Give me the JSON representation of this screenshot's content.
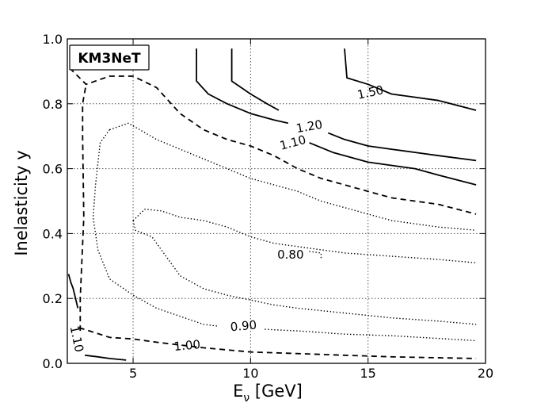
{
  "chart_data": {
    "type": "contour",
    "title": "",
    "annotation_box": "KM3NeT",
    "xlabel": "E_ν [GeV]",
    "xlabel_main": "E",
    "xlabel_sub": "ν",
    "xlabel_rest": " [GeV]",
    "ylabel": "Inelasticity y",
    "xlim": [
      2.2,
      20
    ],
    "ylim": [
      0.0,
      1.0
    ],
    "xticks": [
      5,
      10,
      15,
      20
    ],
    "xtick_labels": [
      "5",
      "10",
      "15",
      "20"
    ],
    "yticks": [
      0.0,
      0.2,
      0.4,
      0.6,
      0.8,
      1.0
    ],
    "ytick_labels": [
      "0.0",
      "0.2",
      "0.4",
      "0.6",
      "0.8",
      "1.0"
    ],
    "grid": true,
    "series": [
      {
        "name": "1.50",
        "style": "solid",
        "points": [
          [
            14.0,
            0.97
          ],
          [
            14.1,
            0.88
          ],
          [
            15.0,
            0.86
          ],
          [
            16.0,
            0.83
          ],
          [
            18.0,
            0.81
          ],
          [
            19.6,
            0.78
          ]
        ],
        "label": {
          "text": "1.50",
          "at": [
            15.1,
            0.835
          ],
          "angle": -12
        }
      },
      {
        "name": "1.20 (left)",
        "style": "solid",
        "points": [
          [
            7.7,
            0.97
          ],
          [
            7.7,
            0.87
          ],
          [
            8.2,
            0.83
          ],
          [
            9.0,
            0.8
          ],
          [
            10.0,
            0.77
          ],
          [
            11.0,
            0.75
          ],
          [
            11.6,
            0.74
          ]
        ]
      },
      {
        "name": "1.20 (right)",
        "style": "solid",
        "points": [
          [
            13.3,
            0.71
          ],
          [
            14.0,
            0.69
          ],
          [
            15.0,
            0.67
          ],
          [
            16.0,
            0.66
          ],
          [
            17.0,
            0.65
          ],
          [
            18.0,
            0.64
          ],
          [
            19.6,
            0.625
          ]
        ],
        "label": {
          "text": "1.20",
          "at": [
            12.5,
            0.73
          ],
          "angle": -10
        }
      },
      {
        "name": "1.10 (upper left)",
        "style": "solid",
        "points": [
          [
            9.2,
            0.97
          ],
          [
            9.2,
            0.87
          ],
          [
            10.0,
            0.83
          ],
          [
            10.7,
            0.8
          ],
          [
            11.2,
            0.78
          ]
        ]
      },
      {
        "name": "1.10 (upper right)",
        "style": "solid",
        "points": [
          [
            12.5,
            0.68
          ],
          [
            13.5,
            0.65
          ],
          [
            15.0,
            0.62
          ],
          [
            16.0,
            0.61
          ],
          [
            17.0,
            0.6
          ],
          [
            18.0,
            0.58
          ],
          [
            19.6,
            0.55
          ]
        ],
        "label": {
          "text": "1.10",
          "at": [
            11.8,
            0.68
          ],
          "angle": -15
        }
      },
      {
        "name": "1.10 (lower left)",
        "style": "solid",
        "points": [
          [
            2.25,
            0.275
          ],
          [
            2.35,
            0.25
          ],
          [
            2.45,
            0.23
          ],
          [
            2.55,
            0.2
          ],
          [
            2.65,
            0.17
          ]
        ]
      },
      {
        "name": "1.10 (lower right)",
        "style": "solid",
        "points": [
          [
            2.95,
            0.025
          ],
          [
            3.5,
            0.02
          ],
          [
            4.0,
            0.015
          ],
          [
            4.7,
            0.01
          ]
        ],
        "label": {
          "text": "1.10",
          "at": [
            2.6,
            0.075
          ],
          "angle": 78
        }
      },
      {
        "name": "1.00",
        "style": "dashed",
        "points": [
          [
            2.3,
            0.91
          ],
          [
            3.0,
            0.86
          ],
          [
            4.0,
            0.885
          ],
          [
            5.0,
            0.885
          ],
          [
            6.0,
            0.85
          ],
          [
            7.0,
            0.77
          ],
          [
            8.0,
            0.72
          ],
          [
            9.0,
            0.69
          ],
          [
            10.0,
            0.67
          ],
          [
            11.0,
            0.64
          ],
          [
            12.0,
            0.6
          ],
          [
            13.0,
            0.57
          ],
          [
            14.0,
            0.55
          ],
          [
            15.0,
            0.53
          ],
          [
            16.0,
            0.51
          ],
          [
            17.0,
            0.5
          ],
          [
            18.0,
            0.49
          ],
          [
            19.6,
            0.46
          ],
          null,
          [
            2.75,
            0.1
          ],
          [
            2.75,
            0.2
          ],
          [
            2.9,
            0.45
          ],
          [
            2.85,
            0.7
          ],
          [
            2.85,
            0.8
          ],
          [
            3.0,
            0.86
          ],
          null,
          [
            2.7,
            0.11
          ],
          [
            4.0,
            0.08
          ],
          [
            5.0,
            0.075
          ],
          [
            6.0,
            0.065
          ],
          [
            8.0,
            0.048
          ],
          [
            10.0,
            0.035
          ],
          [
            12.0,
            0.03
          ],
          [
            14.0,
            0.025
          ],
          [
            16.0,
            0.02
          ],
          [
            19.6,
            0.015
          ]
        ],
        "label": {
          "text": "1.00",
          "at": [
            7.3,
            0.055
          ],
          "angle": -5
        }
      },
      {
        "name": "0.90",
        "style": "dotted",
        "points": [
          [
            4.0,
            0.72
          ],
          [
            4.8,
            0.74
          ],
          [
            6.0,
            0.69
          ],
          [
            7.0,
            0.66
          ],
          [
            8.0,
            0.63
          ],
          [
            9.0,
            0.6
          ],
          [
            10.0,
            0.57
          ],
          [
            12.0,
            0.53
          ],
          [
            13.0,
            0.5
          ],
          [
            14.0,
            0.48
          ],
          [
            16.0,
            0.44
          ],
          [
            18.0,
            0.42
          ],
          [
            19.6,
            0.41
          ],
          null,
          [
            4.0,
            0.72
          ],
          [
            3.6,
            0.68
          ],
          [
            3.4,
            0.55
          ],
          [
            3.3,
            0.45
          ],
          [
            3.5,
            0.35
          ],
          [
            4.0,
            0.26
          ],
          [
            5.0,
            0.21
          ],
          [
            6.0,
            0.17
          ],
          [
            7.0,
            0.145
          ],
          [
            8.0,
            0.12
          ],
          [
            8.6,
            0.115
          ],
          null,
          [
            10.6,
            0.105
          ],
          [
            12.0,
            0.1
          ],
          [
            14.0,
            0.09
          ],
          [
            16.0,
            0.085
          ],
          [
            19.6,
            0.07
          ]
        ],
        "label": {
          "text": "0.90",
          "at": [
            9.7,
            0.115
          ],
          "angle": -5
        }
      },
      {
        "name": "0.80",
        "style": "dotted",
        "points": [
          [
            5.0,
            0.44
          ],
          [
            5.5,
            0.475
          ],
          [
            6.2,
            0.47
          ],
          [
            7.0,
            0.45
          ],
          [
            8.0,
            0.44
          ],
          [
            9.0,
            0.42
          ],
          [
            10.0,
            0.39
          ],
          [
            11.0,
            0.37
          ],
          [
            12.0,
            0.36
          ],
          [
            14.0,
            0.34
          ],
          [
            16.0,
            0.33
          ],
          [
            18.0,
            0.32
          ],
          [
            19.6,
            0.31
          ],
          null,
          [
            5.0,
            0.44
          ],
          [
            5.1,
            0.41
          ],
          [
            5.8,
            0.39
          ],
          [
            6.2,
            0.35
          ],
          [
            7.0,
            0.27
          ],
          [
            8.0,
            0.23
          ],
          [
            9.0,
            0.21
          ],
          [
            10.0,
            0.195
          ],
          [
            11.0,
            0.18
          ],
          [
            12.0,
            0.17
          ],
          [
            14.0,
            0.155
          ],
          [
            16.0,
            0.14
          ],
          [
            18.0,
            0.13
          ],
          [
            19.6,
            0.12
          ],
          null,
          [
            12.5,
            0.345
          ],
          [
            13.0,
            0.34
          ],
          [
            13.0,
            0.32
          ]
        ],
        "label": {
          "text": "0.80",
          "at": [
            11.7,
            0.335
          ],
          "angle": 0
        }
      }
    ]
  }
}
